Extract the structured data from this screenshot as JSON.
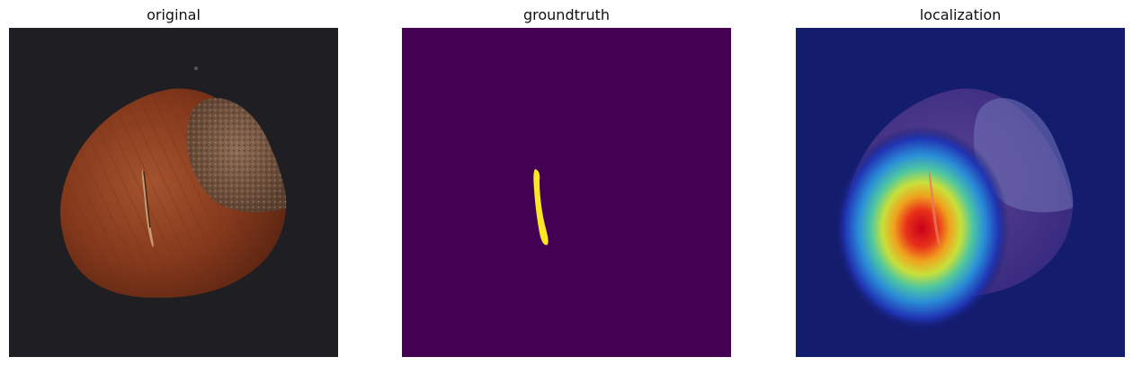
{
  "panels": [
    {
      "title": "original"
    },
    {
      "title": "groundtruth"
    },
    {
      "title": "localization"
    }
  ],
  "colors": {
    "background_dark": "#1f1e22",
    "nut_shell": "#8a3f22",
    "nut_cap": "#7a5a44",
    "mask_background": "#440154",
    "mask_defect": "#fde725",
    "heatmap_cold": "#141c6e"
  }
}
